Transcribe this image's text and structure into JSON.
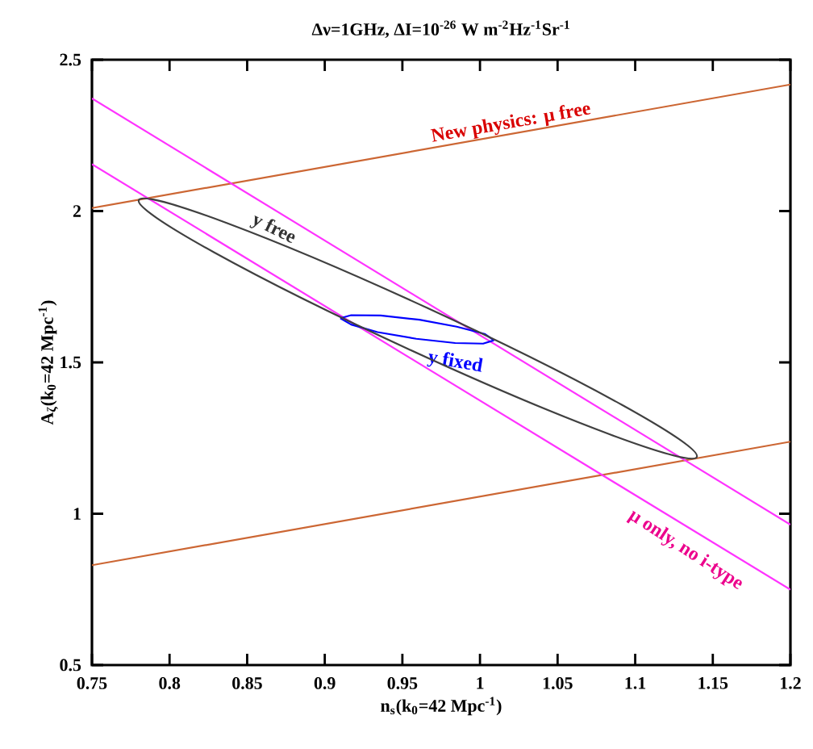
{
  "chart_data": {
    "type": "line",
    "title": "Δν=1GHz, ΔI=10$^{-26}$ W m$^{-2}$Hz$^{-1}$Sr$^{-1}$",
    "xlabel": "n$_{s}$(k$_{0}$=42 Mpc$^{-1}$)",
    "ylabel": "A$_{ζ}$(k$_{0}$=42 Mpc$^{-1}$)",
    "xlim": [
      0.75,
      1.2
    ],
    "ylim": [
      0.5,
      2.5
    ],
    "xticks": [
      0.75,
      0.8,
      0.85,
      0.9,
      0.95,
      1,
      1.05,
      1.1,
      1.15,
      1.2
    ],
    "yticks": [
      0.5,
      1,
      1.5,
      2,
      2.5
    ],
    "series": [
      {
        "color": "#cc6633",
        "x": [
          0.75,
          1.2
        ],
        "values": [
          2.01,
          2.418
        ]
      },
      {
        "color": "#cc6633",
        "x": [
          0.75,
          1.2
        ],
        "values": [
          0.83,
          1.238
        ]
      },
      {
        "color": "#ff33ff",
        "x": [
          0.75,
          1.2
        ],
        "values": [
          2.372,
          0.964
        ]
      },
      {
        "color": "#ff33ff",
        "x": [
          0.75,
          1.2
        ],
        "values": [
          2.155,
          0.749
        ]
      },
      {
        "color": "#0000ff",
        "x": [
          0.91,
          0.917,
          0.936,
          0.961,
          0.985,
          1.003,
          1.009
        ],
        "values": [
          1.646,
          1.656,
          1.655,
          1.641,
          1.618,
          1.594,
          1.573
        ]
      },
      {
        "color": "#0000ff",
        "x": [
          0.91,
          0.917,
          0.934,
          0.959,
          0.984,
          1.002,
          1.009
        ],
        "values": [
          1.646,
          1.625,
          1.6,
          1.578,
          1.564,
          1.562,
          1.573
        ]
      }
    ],
    "annotations": [
      "New physics: μ free",
      "y free",
      "y fixed",
      "μ only, no i-type"
    ]
  }
}
